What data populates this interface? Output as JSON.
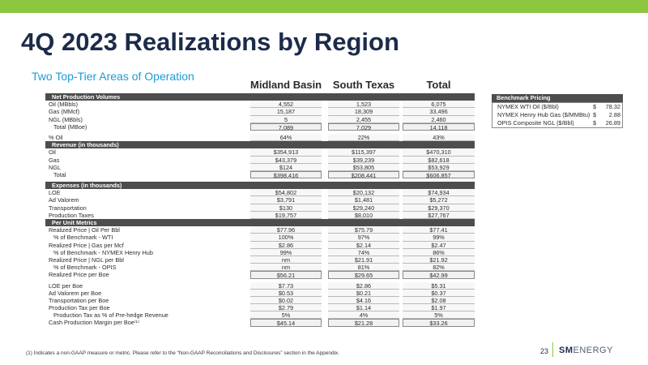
{
  "title": "4Q 2023 Realizations by Region",
  "subtitle": "Two Top-Tier Areas of Operation",
  "columns": [
    "Midland Basin",
    "South Texas",
    "Total"
  ],
  "rows": [
    {
      "label": "Net Production Volumes",
      "v1": "",
      "v2": "",
      "v3": "",
      "type": "section"
    },
    {
      "label": "Oil (MBbls)",
      "v1": "4,552",
      "v2": "1,523",
      "v3": "6,075",
      "type": "data"
    },
    {
      "label": "Gas (MMcf)",
      "v1": "15,187",
      "v2": "18,309",
      "v3": "33,496",
      "type": "data"
    },
    {
      "label": "NGL (MBbls)",
      "v1": "5",
      "v2": "2,455",
      "v3": "2,460",
      "type": "data"
    },
    {
      "label": "Total (MBoe)",
      "v1": "7,089",
      "v2": "7,029",
      "v3": "14,118",
      "type": "boxed",
      "indent": true
    },
    {
      "label": "% Oil",
      "v1": "64%",
      "v2": "22%",
      "v3": "43%",
      "type": "data",
      "gap": true
    },
    {
      "label": "Revenue (in thousands)",
      "v1": "",
      "v2": "",
      "v3": "",
      "type": "section"
    },
    {
      "label": "Oil",
      "v1": "$354,913",
      "v2": "$115,397",
      "v3": "$470,310",
      "type": "data"
    },
    {
      "label": "Gas",
      "v1": "$43,379",
      "v2": "$39,239",
      "v3": "$82,618",
      "type": "data"
    },
    {
      "label": "NGL",
      "v1": "$124",
      "v2": "$53,805",
      "v3": "$53,929",
      "type": "data"
    },
    {
      "label": "Total",
      "v1": "$398,416",
      "v2": "$208,441",
      "v3": "$606,857",
      "type": "boxed",
      "indent": true
    },
    {
      "label": "Expenses (in thousands)",
      "v1": "",
      "v2": "",
      "v3": "",
      "type": "section",
      "gap": true
    },
    {
      "label": "LOE",
      "v1": "$54,802",
      "v2": "$20,132",
      "v3": "$74,934",
      "type": "data"
    },
    {
      "label": "Ad Valorem",
      "v1": "$3,791",
      "v2": "$1,481",
      "v3": "$5,272",
      "type": "data"
    },
    {
      "label": "Transportation",
      "v1": "$130",
      "v2": "$29,240",
      "v3": "$29,370",
      "type": "data"
    },
    {
      "label": "Production Taxes",
      "v1": "$19,757",
      "v2": "$8,010",
      "v3": "$27,767",
      "type": "data"
    },
    {
      "label": "Per Unit Metrics",
      "v1": "",
      "v2": "",
      "v3": "",
      "type": "section"
    },
    {
      "label": "Realized Price | Oil Per Bbl",
      "v1": "$77.96",
      "v2": "$75.79",
      "v3": "$77.41",
      "type": "data"
    },
    {
      "label": "% of Benchmark - WTI",
      "v1": "100%",
      "v2": "97%",
      "v3": "99%",
      "type": "data",
      "indent": true
    },
    {
      "label": "Realized Price | Gas per Mcf",
      "v1": "$2.86",
      "v2": "$2.14",
      "v3": "$2.47",
      "type": "data"
    },
    {
      "label": "% of Benchmark - NYMEX Henry Hub",
      "v1": "99%",
      "v2": "74%",
      "v3": "86%",
      "type": "data",
      "indent": true
    },
    {
      "label": "Realized Price | NGL per Bbl",
      "v1": "nm",
      "v2": "$21.91",
      "v3": "$21.92",
      "type": "data"
    },
    {
      "label": "% of Benchmark - OPIS",
      "v1": "nm",
      "v2": "81%",
      "v3": "82%",
      "type": "data",
      "indent": true
    },
    {
      "label": "Realized Price per Boe",
      "v1": "$56.21",
      "v2": "$29.65",
      "v3": "$42.99",
      "type": "boxed"
    },
    {
      "label": "LOE per Boe",
      "v1": "$7.73",
      "v2": "$2.86",
      "v3": "$5.31",
      "type": "data",
      "gap": true
    },
    {
      "label": "Ad Valorem per Boe",
      "v1": "$0.53",
      "v2": "$0.21",
      "v3": "$0.37",
      "type": "data"
    },
    {
      "label": "Transportation per Boe",
      "v1": "$0.02",
      "v2": "$4.16",
      "v3": "$2.08",
      "type": "data"
    },
    {
      "label": "Production Tax per Boe",
      "v1": "$2.79",
      "v2": "$1.14",
      "v3": "$1.97",
      "type": "data"
    },
    {
      "label": "Production Tax as % of Pre-hedge Revenue",
      "v1": "5%",
      "v2": "4%",
      "v3": "5%",
      "type": "data",
      "indent": true
    },
    {
      "label": "Cash Production Margin per Boe⁽¹⁾",
      "v1": "$45.14",
      "v2": "$21.28",
      "v3": "$33.26",
      "type": "boxed"
    }
  ],
  "benchmark": {
    "title": "Benchmark Pricing",
    "items": [
      {
        "label": "NYMEX WTI Oil ($/Bbl)",
        "currency": "$",
        "value": "78.32"
      },
      {
        "label": "NYMEX Henry Hub Gas ($/MMBtu)",
        "currency": "$",
        "value": "2.88"
      },
      {
        "label": "OPIS Composite NGL ($/Bbl)",
        "currency": "$",
        "value": "26.89"
      }
    ]
  },
  "footnote": "(1)   Indicates a non-GAAP measure or metric. Please refer to the “Non-GAAP Reconciliations and Disclosures” section in the Appendix.",
  "page_number": "23",
  "logo": {
    "bold": "SM",
    "rest": "ENERGY"
  },
  "colors": {
    "accent": "#8cc63f",
    "title": "#1c2b4a",
    "subtitle": "#1c9bd6",
    "section_bg": "#4d4d4d"
  }
}
